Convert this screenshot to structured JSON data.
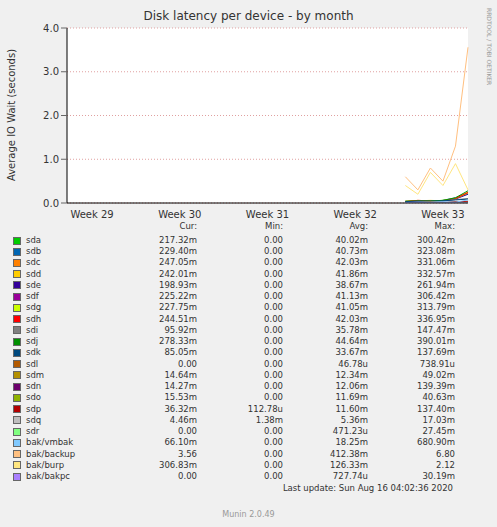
{
  "chart_data": {
    "type": "line",
    "title": "Disk latency per device - by month",
    "y_label": "Average IO Wait (seconds)",
    "side_text": "RRDTOOL / TOBI OETIKER",
    "last_update": "Last update: Sun Aug 16 04:02:36 2020",
    "generator": "Munin 2.0.49",
    "stat_columns": [
      "Cur:",
      "Min:",
      "Avg:",
      "Max:"
    ],
    "categories": [
      null,
      null,
      "Week 29",
      null,
      null,
      null,
      null,
      null,
      null,
      "Week 30",
      null,
      null,
      null,
      null,
      null,
      null,
      "Week 31",
      null,
      null,
      null,
      null,
      null,
      null,
      "Week 32",
      null,
      null,
      null,
      null,
      null,
      null,
      "Week 33",
      null,
      null
    ],
    "ylim": [
      0,
      4
    ],
    "yticks": [
      {
        "value": 0,
        "label": "0.0"
      },
      {
        "value": 1,
        "label": "1.0"
      },
      {
        "value": 2,
        "label": "2.0"
      },
      {
        "value": 3,
        "label": "3.0"
      },
      {
        "value": 4,
        "label": "4.0"
      }
    ],
    "grid": true,
    "series": [
      {
        "name": "sda",
        "color": "#00CC00",
        "stats": [
          "217.32m",
          "0.00",
          "40.02m",
          "300.42m"
        ],
        "values": [
          null,
          null,
          null,
          null,
          null,
          null,
          null,
          null,
          null,
          null,
          null,
          null,
          null,
          null,
          null,
          null,
          null,
          null,
          null,
          null,
          null,
          null,
          null,
          null,
          null,
          null,
          null,
          0.03,
          0.05,
          0.04,
          0.06,
          0.1,
          0.22
        ]
      },
      {
        "name": "sdb",
        "color": "#0066B3",
        "stats": [
          "229.40m",
          "0.00",
          "40.73m",
          "323.08m"
        ],
        "values": [
          null,
          null,
          null,
          null,
          null,
          null,
          null,
          null,
          null,
          null,
          null,
          null,
          null,
          null,
          null,
          null,
          null,
          null,
          null,
          null,
          null,
          null,
          null,
          null,
          null,
          null,
          null,
          0.04,
          0.05,
          0.03,
          0.06,
          0.12,
          0.23
        ]
      },
      {
        "name": "sdc",
        "color": "#FF8000",
        "stats": [
          "247.05m",
          "0.00",
          "42.03m",
          "331.06m"
        ],
        "values": [
          null,
          null,
          null,
          null,
          null,
          null,
          null,
          null,
          null,
          null,
          null,
          null,
          null,
          null,
          null,
          null,
          null,
          null,
          null,
          null,
          null,
          null,
          null,
          null,
          null,
          null,
          null,
          0.04,
          0.06,
          0.05,
          0.05,
          0.1,
          0.25
        ]
      },
      {
        "name": "sdd",
        "color": "#FFCC00",
        "stats": [
          "242.01m",
          "0.00",
          "41.86m",
          "332.57m"
        ],
        "values": [
          null,
          null,
          null,
          null,
          null,
          null,
          null,
          null,
          null,
          null,
          null,
          null,
          null,
          null,
          null,
          null,
          null,
          null,
          null,
          null,
          null,
          null,
          null,
          null,
          null,
          null,
          null,
          0.03,
          0.05,
          0.06,
          0.05,
          0.11,
          0.24
        ]
      },
      {
        "name": "sde",
        "color": "#330099",
        "stats": [
          "198.93m",
          "0.00",
          "38.67m",
          "261.94m"
        ],
        "values": [
          null,
          null,
          null,
          null,
          null,
          null,
          null,
          null,
          null,
          null,
          null,
          null,
          null,
          null,
          null,
          null,
          null,
          null,
          null,
          null,
          null,
          null,
          null,
          null,
          null,
          null,
          null,
          0.02,
          0.04,
          0.05,
          0.04,
          0.09,
          0.2
        ]
      },
      {
        "name": "sdf",
        "color": "#990099",
        "stats": [
          "225.22m",
          "0.00",
          "41.13m",
          "306.42m"
        ],
        "values": [
          null,
          null,
          null,
          null,
          null,
          null,
          null,
          null,
          null,
          null,
          null,
          null,
          null,
          null,
          null,
          null,
          null,
          null,
          null,
          null,
          null,
          null,
          null,
          null,
          null,
          null,
          null,
          0.03,
          0.05,
          0.04,
          0.05,
          0.1,
          0.23
        ]
      },
      {
        "name": "sdg",
        "color": "#CCFF00",
        "stats": [
          "227.75m",
          "0.00",
          "41.05m",
          "313.79m"
        ],
        "values": [
          null,
          null,
          null,
          null,
          null,
          null,
          null,
          null,
          null,
          null,
          null,
          null,
          null,
          null,
          null,
          null,
          null,
          null,
          null,
          null,
          null,
          null,
          null,
          null,
          null,
          null,
          null,
          0.04,
          0.04,
          0.05,
          0.06,
          0.1,
          0.23
        ]
      },
      {
        "name": "sdh",
        "color": "#FF0000",
        "stats": [
          "244.51m",
          "0.00",
          "42.03m",
          "336.95m"
        ],
        "values": [
          null,
          null,
          null,
          null,
          null,
          null,
          null,
          null,
          null,
          null,
          null,
          null,
          null,
          null,
          null,
          null,
          null,
          null,
          null,
          null,
          null,
          null,
          null,
          null,
          null,
          null,
          null,
          0.03,
          0.06,
          0.05,
          0.05,
          0.1,
          0.24
        ]
      },
      {
        "name": "sdi",
        "color": "#808080",
        "stats": [
          "95.92m",
          "0.00",
          "35.78m",
          "147.47m"
        ],
        "values": [
          null,
          null,
          null,
          null,
          null,
          null,
          null,
          null,
          null,
          null,
          null,
          null,
          null,
          null,
          null,
          null,
          null,
          null,
          null,
          null,
          null,
          null,
          null,
          null,
          null,
          null,
          null,
          0.03,
          0.04,
          0.04,
          0.05,
          0.08,
          0.1
        ]
      },
      {
        "name": "sdj",
        "color": "#008F00",
        "stats": [
          "278.33m",
          "0.00",
          "44.64m",
          "390.01m"
        ],
        "values": [
          null,
          null,
          null,
          null,
          null,
          null,
          null,
          null,
          null,
          null,
          null,
          null,
          null,
          null,
          null,
          null,
          null,
          null,
          null,
          null,
          null,
          null,
          null,
          null,
          null,
          null,
          null,
          0.04,
          0.05,
          0.05,
          0.06,
          0.12,
          0.28
        ]
      },
      {
        "name": "sdk",
        "color": "#00487D",
        "stats": [
          "85.05m",
          "0.00",
          "33.67m",
          "137.69m"
        ],
        "values": [
          null,
          null,
          null,
          null,
          null,
          null,
          null,
          null,
          null,
          null,
          null,
          null,
          null,
          null,
          null,
          null,
          null,
          null,
          null,
          null,
          null,
          null,
          null,
          null,
          null,
          null,
          null,
          0.03,
          0.04,
          0.04,
          0.05,
          0.07,
          0.09
        ]
      },
      {
        "name": "sdl",
        "color": "#B35A00",
        "stats": [
          "0.00",
          "0.00",
          "46.78u",
          "738.91u"
        ],
        "values": [
          null,
          null,
          null,
          null,
          null,
          null,
          null,
          null,
          null,
          null,
          null,
          null,
          null,
          null,
          null,
          null,
          null,
          null,
          null,
          null,
          null,
          null,
          null,
          null,
          null,
          null,
          null,
          0,
          0,
          0,
          0,
          0,
          0
        ]
      },
      {
        "name": "sdm",
        "color": "#B38F00",
        "stats": [
          "14.64m",
          "0.00",
          "12.34m",
          "49.02m"
        ],
        "values": [
          null,
          null,
          null,
          null,
          null,
          null,
          null,
          null,
          null,
          null,
          null,
          null,
          null,
          null,
          null,
          null,
          null,
          null,
          null,
          null,
          null,
          null,
          null,
          null,
          null,
          null,
          null,
          0.01,
          0.01,
          0.02,
          0.01,
          0.02,
          0.015
        ]
      },
      {
        "name": "sdn",
        "color": "#6B006B",
        "stats": [
          "14.27m",
          "0.00",
          "12.06m",
          "139.39m"
        ],
        "values": [
          null,
          null,
          null,
          null,
          null,
          null,
          null,
          null,
          null,
          null,
          null,
          null,
          null,
          null,
          null,
          null,
          null,
          null,
          null,
          null,
          null,
          null,
          null,
          null,
          null,
          null,
          null,
          0.01,
          0.02,
          0.01,
          0.01,
          0.02,
          0.014
        ]
      },
      {
        "name": "sdo",
        "color": "#8FB300",
        "stats": [
          "15.53m",
          "0.00",
          "11.69m",
          "40.63m"
        ],
        "values": [
          null,
          null,
          null,
          null,
          null,
          null,
          null,
          null,
          null,
          null,
          null,
          null,
          null,
          null,
          null,
          null,
          null,
          null,
          null,
          null,
          null,
          null,
          null,
          null,
          null,
          null,
          null,
          0.01,
          0.01,
          0.02,
          0.01,
          0.02,
          0.016
        ]
      },
      {
        "name": "sdp",
        "color": "#B30000",
        "stats": [
          "36.32m",
          "112.78u",
          "11.60m",
          "137.40m"
        ],
        "values": [
          null,
          null,
          null,
          null,
          null,
          null,
          null,
          null,
          null,
          null,
          null,
          null,
          null,
          null,
          null,
          null,
          null,
          null,
          null,
          null,
          null,
          null,
          null,
          null,
          null,
          null,
          null,
          0.01,
          0.01,
          0.02,
          0.01,
          0.03,
          0.04
        ]
      },
      {
        "name": "sdq",
        "color": "#BEBEBE",
        "stats": [
          "4.46m",
          "1.38m",
          "5.36m",
          "17.03m"
        ],
        "values": [
          null,
          null,
          null,
          null,
          null,
          null,
          null,
          null,
          null,
          null,
          null,
          null,
          null,
          null,
          null,
          null,
          null,
          null,
          null,
          null,
          null,
          null,
          null,
          null,
          null,
          null,
          null,
          0.005,
          0.006,
          0.005,
          0.007,
          0.006,
          0.004
        ]
      },
      {
        "name": "sdr",
        "color": "#80FF80",
        "stats": [
          "0.00",
          "0.00",
          "471.23u",
          "27.45m"
        ],
        "values": [
          null,
          null,
          null,
          null,
          null,
          null,
          null,
          null,
          null,
          null,
          null,
          null,
          null,
          null,
          null,
          null,
          null,
          null,
          null,
          null,
          null,
          null,
          null,
          null,
          null,
          null,
          null,
          0,
          0,
          0,
          0,
          0,
          0
        ]
      },
      {
        "name": "bak/vmbak",
        "color": "#80C9FF",
        "stats": [
          "66.10m",
          "0.00",
          "18.25m",
          "680.90m"
        ],
        "values": [
          null,
          null,
          null,
          null,
          null,
          null,
          null,
          null,
          null,
          null,
          null,
          null,
          null,
          null,
          null,
          null,
          null,
          null,
          null,
          null,
          null,
          null,
          null,
          null,
          null,
          null,
          null,
          0.01,
          0.02,
          0.02,
          0.03,
          0.02,
          0.07
        ]
      },
      {
        "name": "bak/backup",
        "color": "#FFC080",
        "stats": [
          "3.56",
          "0.00",
          "412.38m",
          "6.80"
        ],
        "values": [
          null,
          null,
          null,
          null,
          null,
          null,
          null,
          null,
          null,
          null,
          null,
          null,
          null,
          null,
          null,
          null,
          null,
          null,
          null,
          null,
          null,
          null,
          null,
          null,
          null,
          null,
          null,
          0.6,
          0.3,
          0.8,
          0.5,
          1.3,
          3.56
        ]
      },
      {
        "name": "bak/burp",
        "color": "#FFE680",
        "stats": [
          "306.83m",
          "0.00",
          "126.33m",
          "2.12"
        ],
        "values": [
          null,
          null,
          null,
          null,
          null,
          null,
          null,
          null,
          null,
          null,
          null,
          null,
          null,
          null,
          null,
          null,
          null,
          null,
          null,
          null,
          null,
          null,
          null,
          null,
          null,
          null,
          null,
          0.4,
          0.2,
          0.7,
          0.4,
          0.9,
          0.3
        ]
      },
      {
        "name": "bak/bakpc",
        "color": "#AA80FF",
        "stats": [
          "0.00",
          "0.00",
          "727.74u",
          "30.19m"
        ],
        "values": [
          null,
          null,
          null,
          null,
          null,
          null,
          null,
          null,
          null,
          null,
          null,
          null,
          null,
          null,
          null,
          null,
          null,
          null,
          null,
          null,
          null,
          null,
          null,
          null,
          null,
          null,
          null,
          0,
          0,
          0,
          0,
          0,
          0
        ]
      }
    ]
  }
}
